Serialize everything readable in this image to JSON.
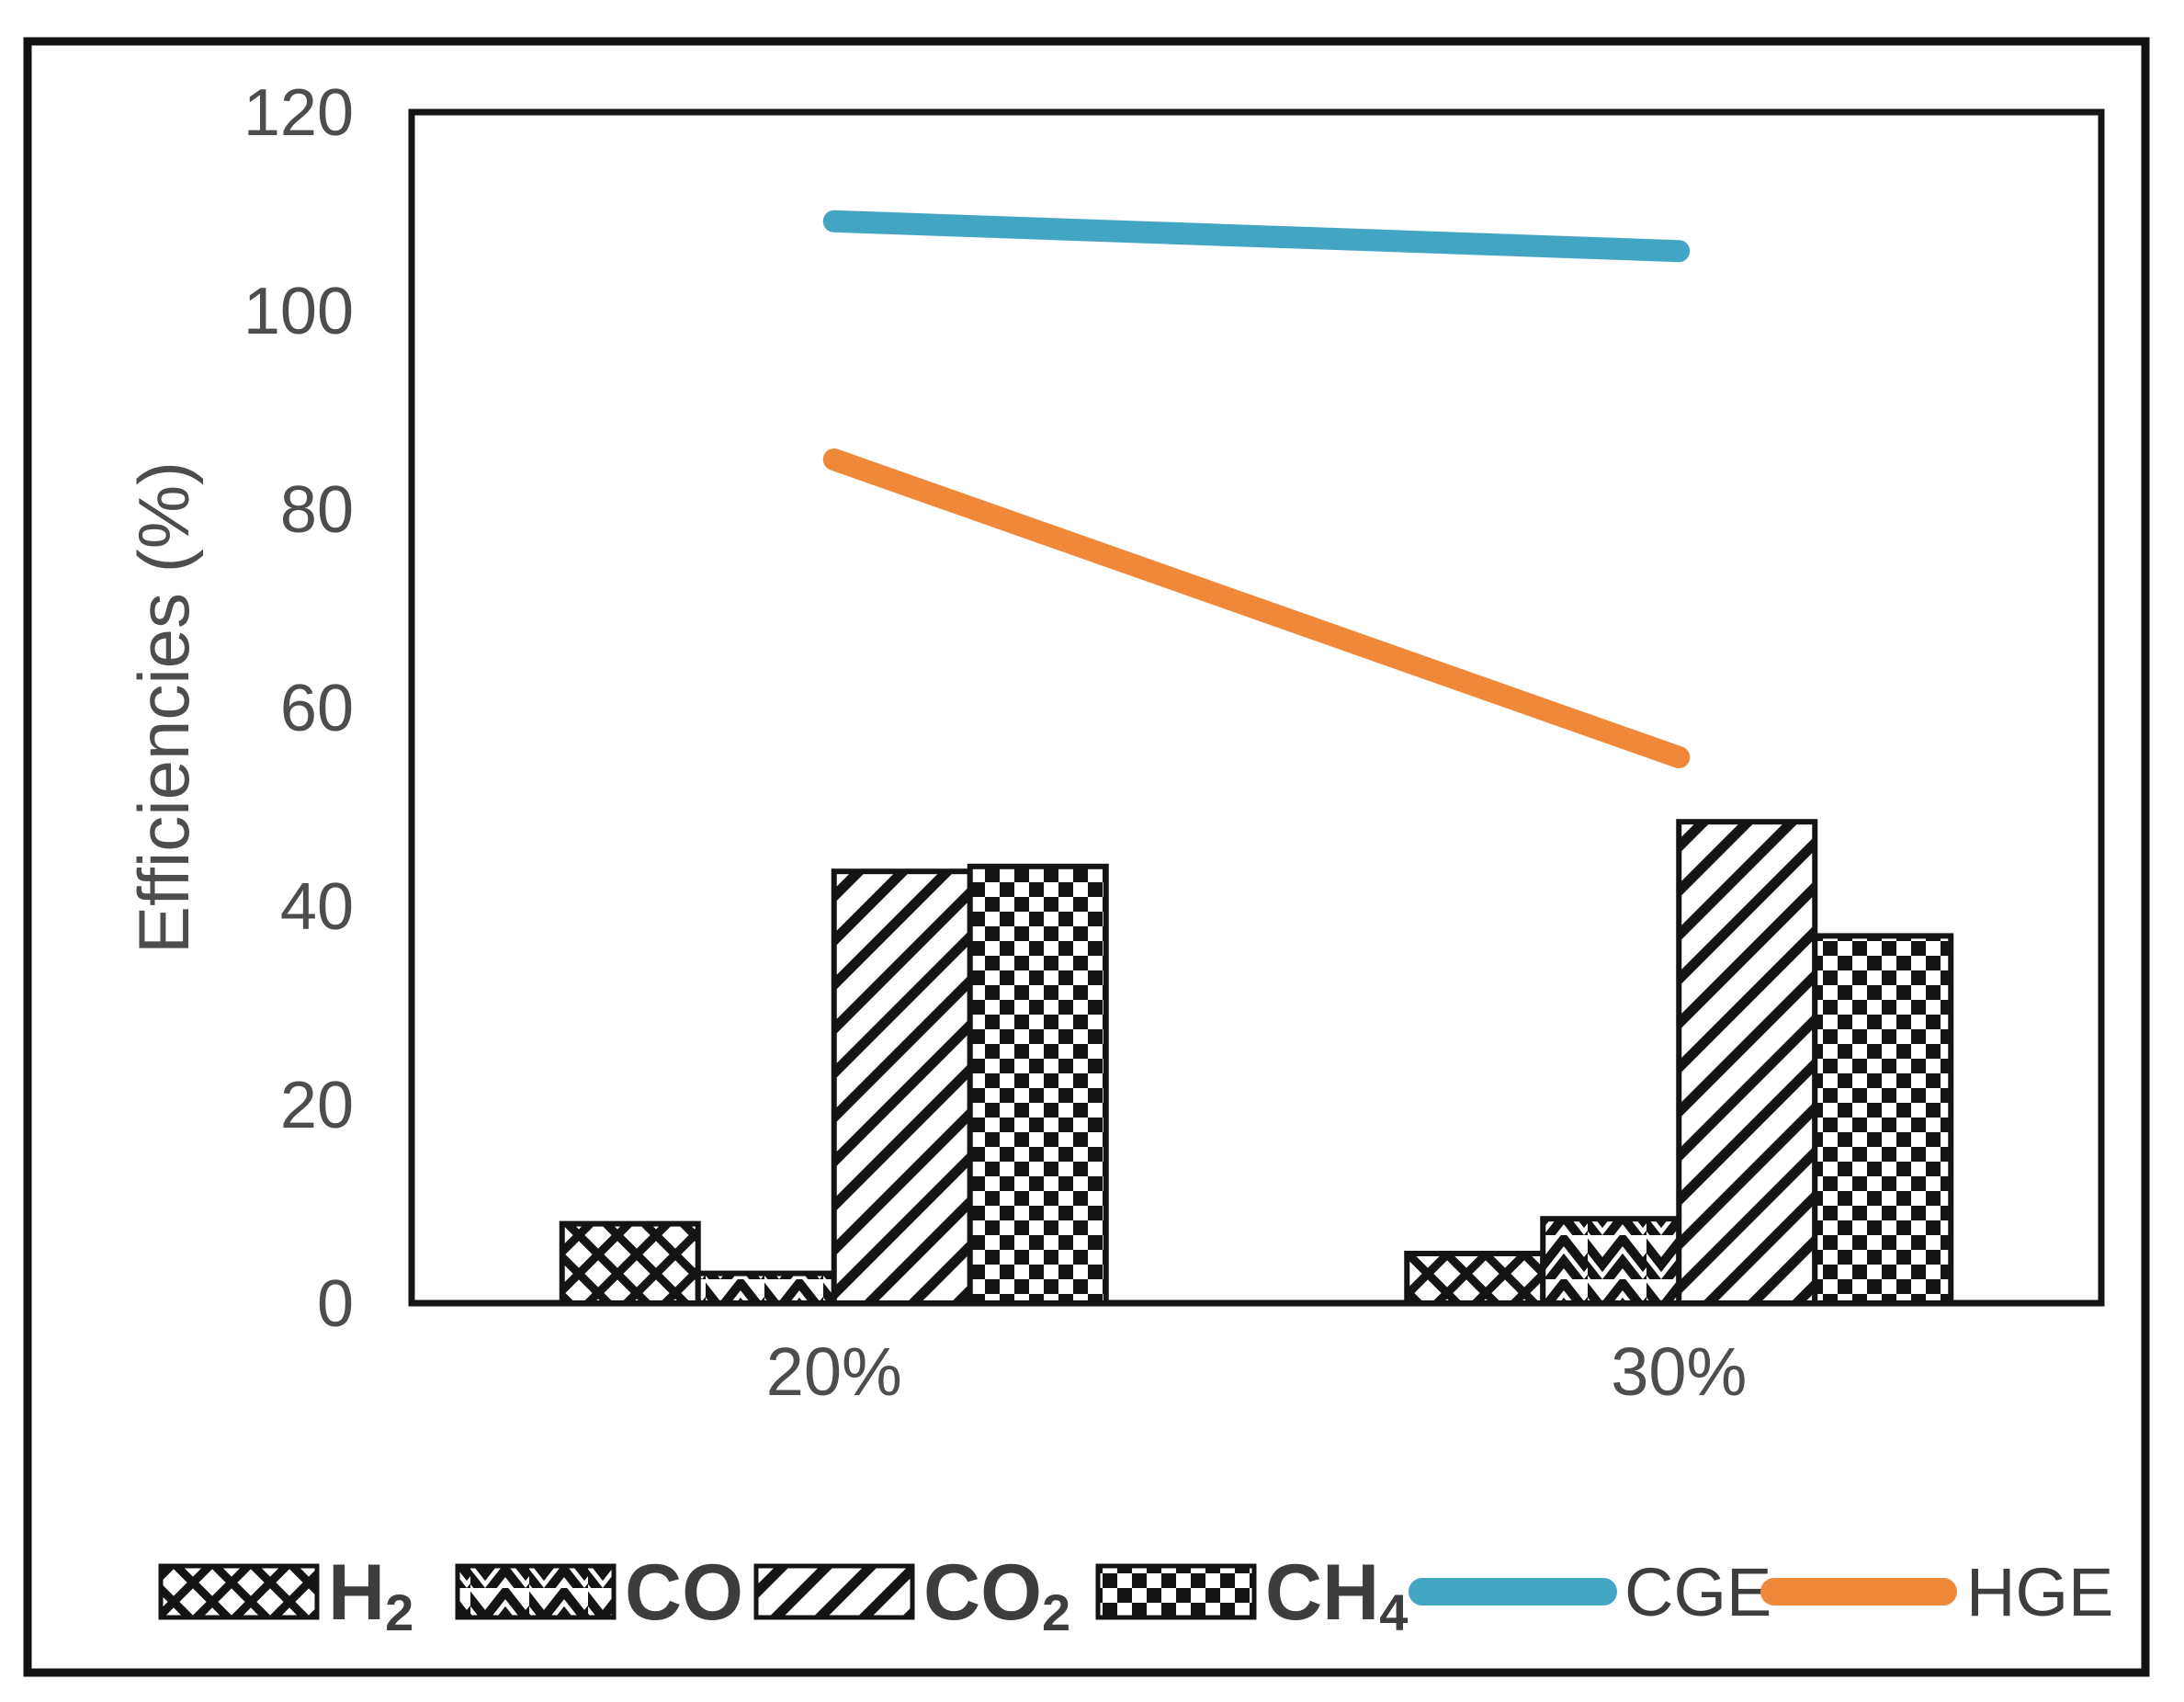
{
  "figure": {
    "background": "#ffffff",
    "border_color": "#111111",
    "plot_border_color": "#141414",
    "pattern_ink": "#141414"
  },
  "chart_data": {
    "type": "bar",
    "title": "",
    "categories": [
      "20%",
      "30%"
    ],
    "bar_series": [
      {
        "name": "H2",
        "label_base": "H",
        "label_sub": "2",
        "pattern": "crosshatch",
        "values": [
          8,
          5
        ]
      },
      {
        "name": "CO",
        "label_base": "CO",
        "label_sub": "",
        "pattern": "zigzag",
        "values": [
          3,
          8.5
        ]
      },
      {
        "name": "CO2",
        "label_base": "CO",
        "label_sub": "2",
        "pattern": "diagonal",
        "values": [
          43.5,
          48.5
        ]
      },
      {
        "name": "CH4",
        "label_base": "CH",
        "label_sub": "4",
        "pattern": "checker",
        "values": [
          44,
          37
        ]
      }
    ],
    "line_series": [
      {
        "name": "CGE",
        "color": "#42A5C3",
        "values": [
          109,
          106
        ]
      },
      {
        "name": "HGE",
        "color": "#EF8838",
        "values": [
          85,
          55
        ]
      }
    ],
    "xlabel": "",
    "ylabel": "Efficiencies (%)",
    "ylim": [
      0,
      120
    ],
    "ytick_step": 20,
    "yticks": [
      0,
      20,
      40,
      60,
      80,
      100,
      120
    ],
    "grid": false,
    "legend_position": "bottom",
    "colors": {
      "axis_text": "#4d4d4d",
      "legend_text": "#3d3d3d"
    }
  }
}
